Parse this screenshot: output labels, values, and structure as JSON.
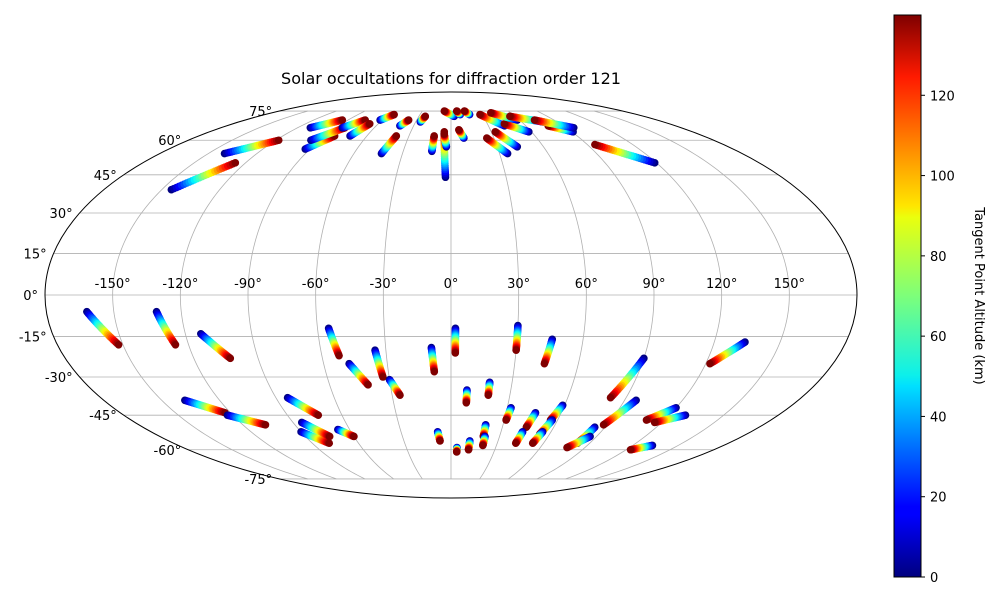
{
  "chart_data": {
    "type": "scatter",
    "projection": "mollweide",
    "title": "Solar occultations for diffraction order 121",
    "lon_tick_labels": [
      "-150°",
      "-120°",
      "-90°",
      "-60°",
      "-30°",
      "0°",
      "30°",
      "60°",
      "90°",
      "120°",
      "150°"
    ],
    "lat_tick_labels": [
      "75°",
      "60°",
      "45°",
      "30°",
      "15°",
      "0°",
      "-15°",
      "-30°",
      "-45°",
      "-60°",
      "-75°"
    ],
    "lon_ticks": [
      -150,
      -120,
      -90,
      -60,
      -30,
      0,
      30,
      60,
      90,
      120,
      150
    ],
    "lat_ticks": [
      75,
      60,
      45,
      30,
      15,
      0,
      -15,
      -30,
      -45,
      -60,
      -75
    ],
    "grid": true,
    "colorbar": {
      "label": "Tangent Point Altitude (km)",
      "range": [
        0,
        140
      ],
      "tick_values": [
        0,
        20,
        40,
        60,
        80,
        100,
        120
      ],
      "tick_labels": [
        "0",
        "20",
        "40",
        "60",
        "80",
        "100",
        "120"
      ],
      "colormap": "jet"
    },
    "tracks_description": "Each track runs from low altitude (blue) to high altitude (red).",
    "tracks": [
      {
        "lon_low": -162,
        "lat_low": -6,
        "lon_high": -152,
        "lat_high": -18
      },
      {
        "lon_low": -131,
        "lat_low": -6,
        "lon_high": -126,
        "lat_high": -18
      },
      {
        "lon_low": -113,
        "lat_low": -14,
        "lon_high": -103,
        "lat_high": -23
      },
      {
        "lon_low": -138,
        "lat_low": -39,
        "lon_high": -123,
        "lat_high": -44
      },
      {
        "lon_low": -123,
        "lat_low": -45,
        "lon_high": -107,
        "lat_high": -49
      },
      {
        "lon_low": -84,
        "lat_low": -38,
        "lon_high": -73,
        "lat_high": -45
      },
      {
        "lon_low": -90,
        "lat_low": -52,
        "lon_high": -79,
        "lat_high": -57
      },
      {
        "lon_low": -85,
        "lat_low": -48,
        "lon_high": -75,
        "lat_high": -54
      },
      {
        "lon_low": -67,
        "lat_low": -51,
        "lon_high": -60,
        "lat_high": -54
      },
      {
        "lon_low": -55,
        "lat_low": -12,
        "lon_high": -52,
        "lat_high": -22
      },
      {
        "lon_low": -48,
        "lat_low": -25,
        "lon_high": -41,
        "lat_high": -33
      },
      {
        "lon_low": -35,
        "lat_low": -20,
        "lon_high": -33,
        "lat_high": -30
      },
      {
        "lon_low": -30,
        "lat_low": -31,
        "lon_high": -26,
        "lat_high": -37
      },
      {
        "lon_low": -9,
        "lat_low": -19,
        "lon_high": -8,
        "lat_high": -28
      },
      {
        "lon_low": -8,
        "lat_low": -52,
        "lon_high": -7,
        "lat_high": -56
      },
      {
        "lon_low": 2,
        "lat_low": -12,
        "lon_high": 2,
        "lat_high": -21
      },
      {
        "lon_low": 4,
        "lat_low": -59,
        "lon_high": 4,
        "lat_high": -61
      },
      {
        "lon_low": 8,
        "lat_low": -35,
        "lon_high": 8,
        "lat_high": -40
      },
      {
        "lon_low": 12,
        "lat_low": -56,
        "lon_high": 12,
        "lat_high": -60
      },
      {
        "lon_low": 19,
        "lat_low": -32,
        "lon_high": 19,
        "lat_high": -37
      },
      {
        "lon_low": 20,
        "lat_low": -49,
        "lon_high": 20,
        "lat_high": -54
      },
      {
        "lon_low": 21,
        "lat_low": -54,
        "lon_high": 21,
        "lat_high": -58
      },
      {
        "lon_low": 30,
        "lat_low": -11,
        "lon_high": 30,
        "lat_high": -20
      },
      {
        "lon_low": 32,
        "lat_low": -42,
        "lon_high": 31,
        "lat_high": -47
      },
      {
        "lon_low": 46,
        "lat_low": -16,
        "lon_high": 44,
        "lat_high": -25
      },
      {
        "lon_low": 46,
        "lat_low": -44,
        "lon_high": 44,
        "lat_high": -50
      },
      {
        "lon_low": 43,
        "lat_low": -52,
        "lon_high": 42,
        "lat_high": -57
      },
      {
        "lon_low": 59,
        "lat_low": -41,
        "lon_high": 56,
        "lat_high": -47
      },
      {
        "lon_low": 57,
        "lat_low": -47,
        "lon_high": 54,
        "lat_high": -53
      },
      {
        "lon_low": 55,
        "lat_low": -52,
        "lon_high": 53,
        "lat_high": -57
      },
      {
        "lon_low": 90,
        "lat_low": -23,
        "lon_high": 82,
        "lat_high": -38
      },
      {
        "lon_low": 96,
        "lat_low": -39,
        "lon_high": 88,
        "lat_high": -49
      },
      {
        "lon_low": 84,
        "lat_low": -50,
        "lon_high": 82,
        "lat_high": -57
      },
      {
        "lon_low": 86,
        "lat_low": -54,
        "lon_high": 78,
        "lat_high": -59
      },
      {
        "lon_low": 120,
        "lat_low": -42,
        "lon_high": 110,
        "lat_high": -47
      },
      {
        "lon_low": 134,
        "lat_low": -17,
        "lon_high": 122,
        "lat_high": -25
      },
      {
        "lon_low": 129,
        "lat_low": -45,
        "lon_high": 116,
        "lat_high": -48
      },
      {
        "lon_low": 133,
        "lat_low": -58,
        "lon_high": 123,
        "lat_high": -60
      },
      {
        "lon_low": -145,
        "lat_low": 39,
        "lon_high": -126,
        "lat_high": 50
      },
      {
        "lon_low": -140,
        "lat_low": 54,
        "lon_high": -118,
        "lat_high": 60
      },
      {
        "lon_low": -110,
        "lat_low": 66,
        "lon_high": -95,
        "lat_high": 70
      },
      {
        "lon_low": -93,
        "lat_low": 56,
        "lon_high": -83,
        "lat_high": 62
      },
      {
        "lon_low": -96,
        "lat_low": 60,
        "lon_high": -83,
        "lat_high": 66
      },
      {
        "lon_low": -85,
        "lat_low": 66,
        "lon_high": -75,
        "lat_high": 70
      },
      {
        "lon_low": -72,
        "lat_low": 62,
        "lon_high": -67,
        "lat_high": 68
      },
      {
        "lon_low": -62,
        "lat_low": 70,
        "lon_high": -55,
        "lat_high": 73
      },
      {
        "lon_low": -43,
        "lat_low": 54,
        "lon_high": -39,
        "lat_high": 62
      },
      {
        "lon_low": -41,
        "lat_low": 67,
        "lon_high": -37,
        "lat_high": 70
      },
      {
        "lon_low": -26,
        "lat_low": 69,
        "lon_high": -24,
        "lat_high": 72
      },
      {
        "lon_low": -12,
        "lat_low": 55,
        "lon_high": -12,
        "lat_high": 62
      },
      {
        "lon_low": -3,
        "lat_low": 44,
        "lon_high": -5,
        "lat_high": 64
      },
      {
        "lon_low": -3,
        "lat_low": 57,
        "lon_high": -5,
        "lat_high": 63
      },
      {
        "lon_low": 9,
        "lat_low": 61,
        "lon_high": 6,
        "lat_high": 65
      },
      {
        "lon_low": 3,
        "lat_low": 72,
        "lon_high": -7,
        "lat_high": 75
      },
      {
        "lon_low": 9,
        "lat_low": 73,
        "lon_high": 6,
        "lat_high": 75
      },
      {
        "lon_low": 18,
        "lat_low": 73,
        "lon_high": 14,
        "lat_high": 75
      },
      {
        "lon_low": 35,
        "lat_low": 54,
        "lon_high": 25,
        "lat_high": 61
      },
      {
        "lon_low": 43,
        "lat_low": 57,
        "lon_high": 33,
        "lat_high": 64
      },
      {
        "lon_low": 43,
        "lat_low": 67,
        "lon_high": 28,
        "lat_high": 73
      },
      {
        "lon_low": 58,
        "lat_low": 64,
        "lon_high": 44,
        "lat_high": 68
      },
      {
        "lon_low": 58,
        "lat_low": 70,
        "lon_high": 40,
        "lat_high": 74
      },
      {
        "lon_low": 78,
        "lat_low": 69,
        "lon_high": 55,
        "lat_high": 72
      },
      {
        "lon_low": 91,
        "lat_low": 64,
        "lon_high": 78,
        "lat_high": 67
      },
      {
        "lon_low": 96,
        "lat_low": 66,
        "lon_high": 73,
        "lat_high": 70
      },
      {
        "lon_low": 119,
        "lat_low": 50,
        "lon_high": 95,
        "lat_high": 58
      }
    ]
  }
}
